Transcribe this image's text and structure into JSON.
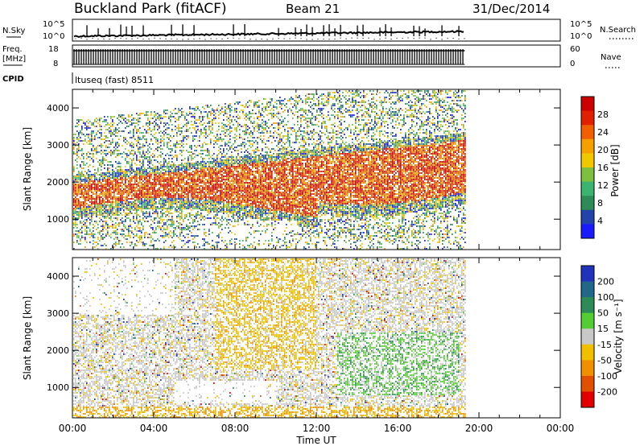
{
  "header": {
    "station": "Buckland Park (fitACF)",
    "beam": "Beam 21",
    "date": "31/Dec/2014"
  },
  "noise_panel": {
    "left_label": "N.Sky",
    "right_label": "N.Search",
    "left_ticks": [
      "10^5",
      "10^0"
    ],
    "right_ticks": [
      "10^5",
      "10^0"
    ]
  },
  "freq_panel": {
    "left_label_top": "Freq.",
    "left_label_unit": "[MHz]",
    "left_ticks": [
      "18",
      "8"
    ],
    "right_label": "Nave",
    "right_ticks": [
      "60",
      "0"
    ]
  },
  "cpid": {
    "label": "CPID",
    "text": "ltuseq (fast) 8511"
  },
  "chart_data": [
    {
      "type": "heatmap",
      "parameter": "power",
      "ylabel": "Slant Range [km]",
      "xlabel": "",
      "ylim": [
        180,
        4500
      ],
      "yticks": [
        "1000",
        "2000",
        "3000",
        "4000"
      ],
      "colorbar_label": "Power [dB]",
      "colorbar_ticks": [
        "4",
        "8",
        "12",
        "16",
        "20",
        "24",
        "28"
      ],
      "colorbar_range": [
        0,
        32
      ],
      "colors": [
        "#1a1aff",
        "#2244aa",
        "#2e8b57",
        "#3cb371",
        "#7fbf3f",
        "#f0c800",
        "#f5a000",
        "#f06000",
        "#e02000",
        "#cc0000"
      ],
      "data_end_hour": 19.3
    },
    {
      "type": "heatmap",
      "parameter": "velocity",
      "ylabel": "Slant Range [km]",
      "xlabel": "Time UT",
      "ylim": [
        180,
        4500
      ],
      "yticks": [
        "1000",
        "2000",
        "3000",
        "4000"
      ],
      "xticks": [
        "00:00",
        "04:00",
        "08:00",
        "12:00",
        "16:00",
        "20:00",
        "00:00"
      ],
      "colorbar_label": "Velocity [m s⁻¹]",
      "colorbar_ticks": [
        "200",
        "100",
        "50",
        "15",
        "-15",
        "-50",
        "-100",
        "-200"
      ],
      "colors": [
        "#2233bb",
        "#226688",
        "#2e8b57",
        "#55cc33",
        "#c8c8c8",
        "#f0c000",
        "#f09000",
        "#e05000",
        "#e00000"
      ],
      "data_end_hour": 19.3
    }
  ]
}
